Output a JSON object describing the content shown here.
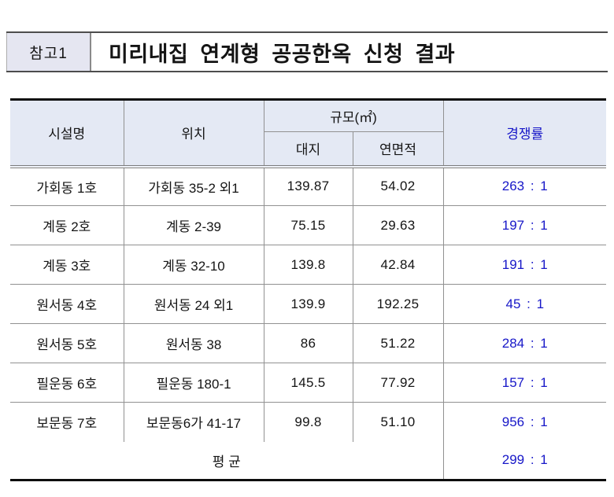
{
  "header": {
    "badge": "참고1",
    "title": "미리내집 연계형 공공한옥 신청 결과"
  },
  "colors": {
    "accent_blue": "#1717c8",
    "header_bg": "#e4e9f4",
    "badge_bg": "#e5e6f1",
    "border_gray": "#919191",
    "line_black": "#0d0d0d"
  },
  "table": {
    "columns": {
      "facility": "시설명",
      "location": "위치",
      "scale_group": "규모(㎡)",
      "scale_site": "대지",
      "scale_floor": "연면적",
      "competition": "경쟁률"
    },
    "rows": [
      {
        "facility": "가회동 1호",
        "location": "가회동 35-2 외1",
        "site": "139.87",
        "floor": "54.02",
        "ratio": "263 : 1"
      },
      {
        "facility": "계동 2호",
        "location": "계동 2-39",
        "site": "75.15",
        "floor": "29.63",
        "ratio": "197 : 1"
      },
      {
        "facility": "계동 3호",
        "location": "계동 32-10",
        "site": "139.8",
        "floor": "42.84",
        "ratio": "191 : 1"
      },
      {
        "facility": "원서동 4호",
        "location": "원서동 24 외1",
        "site": "139.9",
        "floor": "192.25",
        "ratio": "45 : 1"
      },
      {
        "facility": "원서동 5호",
        "location": "원서동 38",
        "site": "86",
        "floor": "51.22",
        "ratio": "284 : 1"
      },
      {
        "facility": "필운동 6호",
        "location": "필운동 180-1",
        "site": "145.5",
        "floor": "77.92",
        "ratio": "157 : 1"
      },
      {
        "facility": "보문동 7호",
        "location": "보문동6가 41-17",
        "site": "99.8",
        "floor": "51.10",
        "ratio": "956 : 1"
      }
    ],
    "footer": {
      "label": "평 균",
      "ratio": "299 : 1"
    }
  }
}
